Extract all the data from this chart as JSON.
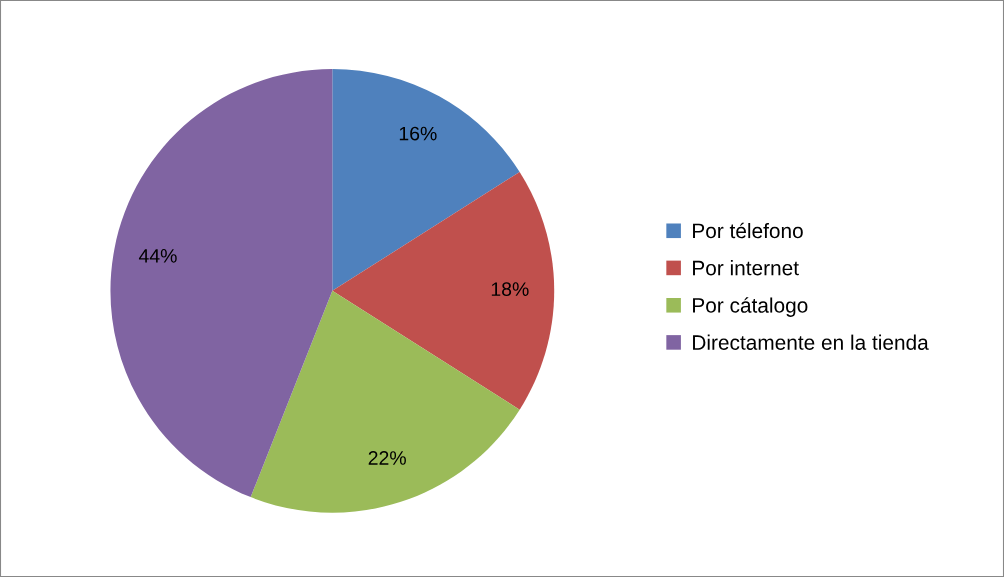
{
  "chart_data": {
    "type": "pie",
    "categories": [
      "Por télefono",
      "Por internet",
      "Por cátalogo",
      "Directamente en la tienda"
    ],
    "values": [
      16,
      18,
      22,
      44
    ],
    "colors": [
      "#4f81bd",
      "#c0504d",
      "#9bbb59",
      "#8064a2"
    ],
    "value_labels": [
      "16%",
      "18%",
      "22%",
      "44%"
    ],
    "legend": "right"
  }
}
